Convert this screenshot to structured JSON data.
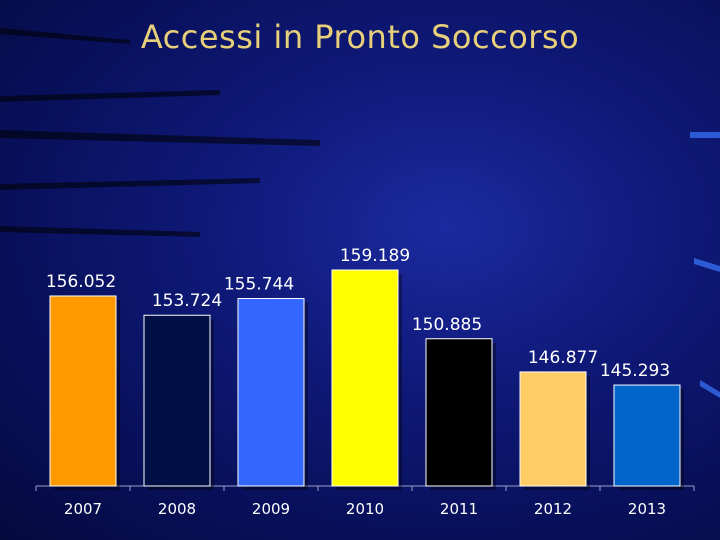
{
  "title": "Accessi in Pronto Soccorso",
  "chart_data": {
    "type": "bar",
    "title": "Accessi in Pronto Soccorso",
    "categories": [
      "2007",
      "2008",
      "2009",
      "2010",
      "2011",
      "2012",
      "2013"
    ],
    "values": [
      156052,
      153724,
      155744,
      159189,
      150885,
      146877,
      145293
    ],
    "value_labels": [
      "156.052",
      "153.724",
      "155.744",
      "159.189",
      "150.885",
      "146.877",
      "145.293"
    ],
    "colors": [
      "#ff9900",
      "#000f45",
      "#3366ff",
      "#ffff00",
      "#000000",
      "#ffcc66",
      "#0066cc"
    ],
    "xlabel": "",
    "ylabel": "",
    "grid": false,
    "legend": "none"
  }
}
